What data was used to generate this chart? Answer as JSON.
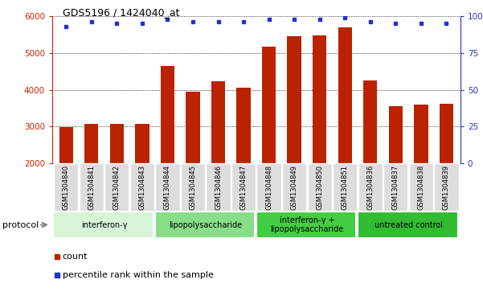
{
  "title": "GDS5196 / 1424040_at",
  "samples": [
    "GSM1304840",
    "GSM1304841",
    "GSM1304842",
    "GSM1304843",
    "GSM1304844",
    "GSM1304845",
    "GSM1304846",
    "GSM1304847",
    "GSM1304848",
    "GSM1304849",
    "GSM1304850",
    "GSM1304851",
    "GSM1304836",
    "GSM1304837",
    "GSM1304838",
    "GSM1304839"
  ],
  "counts": [
    2980,
    3080,
    3080,
    3080,
    4640,
    3950,
    4230,
    4060,
    5170,
    5450,
    5480,
    5700,
    4250,
    3550,
    3590,
    3620
  ],
  "percentiles": [
    93,
    96,
    95,
    95,
    98,
    96,
    96,
    96,
    98,
    98,
    98,
    99,
    96,
    95,
    95,
    95
  ],
  "bar_color": "#bb2200",
  "dot_color": "#2233cc",
  "ylim_left": [
    2000,
    6000
  ],
  "ylim_right": [
    0,
    100
  ],
  "yticks_left": [
    2000,
    3000,
    4000,
    5000,
    6000
  ],
  "yticks_right": [
    0,
    25,
    50,
    75,
    100
  ],
  "ytick_labels_right": [
    "0",
    "25",
    "50",
    "75",
    "100%"
  ],
  "groups": [
    {
      "label": "interferon-γ",
      "start": 0,
      "end": 4,
      "color": "#d6f5d6"
    },
    {
      "label": "lipopolysaccharide",
      "start": 4,
      "end": 8,
      "color": "#88dd88"
    },
    {
      "label": "interferon-γ +\nlipopolysaccharide",
      "start": 8,
      "end": 12,
      "color": "#44cc44"
    },
    {
      "label": "untreated control",
      "start": 12,
      "end": 16,
      "color": "#33bb33"
    }
  ],
  "protocol_label": "protocol",
  "legend_count_label": "count",
  "legend_percentile_label": "percentile rank within the sample",
  "bg_color": "#ffffff",
  "left_tick_color": "#cc2200",
  "right_tick_color": "#2233cc",
  "sample_box_color": "#dddddd",
  "grid_color": "#000000"
}
